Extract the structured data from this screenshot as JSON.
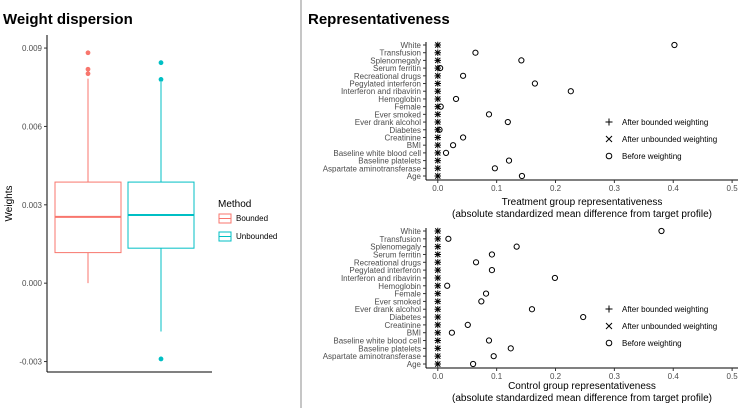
{
  "titles": {
    "left": "Weight dispersion",
    "right": "Representativeness"
  },
  "colors": {
    "bounded": "#f8766d",
    "unbounded": "#00bfc4",
    "axis": "#000000",
    "tick_text": "#4d4d4d"
  },
  "chart_data": [
    {
      "type": "box",
      "title": "Weight dispersion",
      "ylabel": "Weights",
      "xlabel": "",
      "ylim": [
        -0.0034,
        0.0095
      ],
      "y_ticks": [
        -0.003,
        0.0,
        0.003,
        0.006,
        0.009
      ],
      "y_tick_labels": [
        "-0.003",
        "0.000",
        "0.003",
        "0.006",
        "0.009"
      ],
      "legend_title": "Method",
      "legend_position": "right",
      "grid": false,
      "series": [
        {
          "name": "Bounded",
          "min": 0.0,
          "q1": 0.00117,
          "median": 0.00254,
          "q3": 0.00387,
          "max": 0.00783,
          "outliers": [
            0.00882,
            0.00819,
            0.00802
          ]
        },
        {
          "name": "Unbounded",
          "min": -0.00185,
          "q1": 0.00134,
          "median": 0.00261,
          "q3": 0.00387,
          "max": 0.0077,
          "outliers": [
            0.00844,
            0.0078,
            -0.0029
          ]
        }
      ]
    },
    {
      "type": "scatter",
      "title": "",
      "xlabel": "Treatment group representativeness",
      "xlabel2": "(absolute standardized mean difference from target profile)",
      "xlim": [
        -0.02,
        0.51
      ],
      "x_ticks": [
        0.0,
        0.1,
        0.2,
        0.3,
        0.4,
        0.5
      ],
      "x_tick_labels": [
        "0.0",
        "0.1",
        "0.2",
        "0.3",
        "0.4",
        "0.5"
      ],
      "legend_position": "right",
      "legend": [
        "After bounded weighting",
        "After unbounded weighting",
        "Before weighting"
      ],
      "categories": [
        "White",
        "Transfusion",
        "Splenomegaly",
        "Serum ferritin",
        "Recreational drugs",
        "Pegylated interferon",
        "Interferon and ribavirin",
        "Hemoglobin",
        "Female",
        "Ever smoked",
        "Ever drank alcohol",
        "Diabetes",
        "Creatinine",
        "BMI",
        "Baseline white blood cell",
        "Baseline platelets",
        "Aspartate aminotransferase",
        "Age"
      ],
      "series": [
        {
          "name": "After bounded weighting",
          "values": [
            0,
            0,
            0,
            0,
            0,
            0,
            0,
            0,
            0,
            0,
            0,
            0,
            0,
            0,
            0,
            0,
            0,
            0
          ]
        },
        {
          "name": "After unbounded weighting",
          "values": [
            0,
            0,
            0,
            0,
            0,
            0,
            0,
            0,
            0,
            0,
            0,
            0,
            0,
            0,
            0,
            0,
            0,
            0
          ]
        },
        {
          "name": "Before weighting",
          "values": [
            0.402,
            0.064,
            0.142,
            0.004,
            0.043,
            0.165,
            0.226,
            0.031,
            0.005,
            0.087,
            0.119,
            0.003,
            0.043,
            0.026,
            0.014,
            0.121,
            0.097,
            0.143
          ]
        }
      ]
    },
    {
      "type": "scatter",
      "title": "",
      "xlabel": "Control group representativeness",
      "xlabel2": "(absolute standardized mean difference from target profile)",
      "xlim": [
        -0.02,
        0.51
      ],
      "x_ticks": [
        0.0,
        0.1,
        0.2,
        0.3,
        0.4,
        0.5
      ],
      "x_tick_labels": [
        "0.0",
        "0.1",
        "0.2",
        "0.3",
        "0.4",
        "0.5"
      ],
      "legend_position": "right",
      "legend": [
        "After bounded weighting",
        "After unbounded weighting",
        "Before weighting"
      ],
      "categories": [
        "White",
        "Transfusion",
        "Splenomegaly",
        "Serum ferritin",
        "Recreational drugs",
        "Pegylated interferon",
        "Interferon and ribavirin",
        "Hemoglobin",
        "Female",
        "Ever smoked",
        "Ever drank alcohol",
        "Diabetes",
        "Creatinine",
        "BMI",
        "Baseline white blood cell",
        "Baseline platelets",
        "Aspartate aminotransferase",
        "Age"
      ],
      "series": [
        {
          "name": "After bounded weighting",
          "values": [
            0,
            0,
            0,
            0,
            0,
            0,
            0,
            0,
            0,
            0,
            0,
            0,
            0,
            0,
            0,
            0,
            0,
            0
          ]
        },
        {
          "name": "After unbounded weighting",
          "values": [
            0,
            0,
            0,
            0,
            0,
            0,
            0,
            0,
            0,
            0,
            0,
            0,
            0,
            0,
            0,
            0,
            0,
            0
          ]
        },
        {
          "name": "Before weighting",
          "values": [
            0.38,
            0.018,
            0.134,
            0.092,
            0.065,
            0.092,
            0.199,
            0.016,
            0.082,
            0.074,
            0.16,
            0.247,
            0.051,
            0.024,
            0.087,
            0.124,
            0.095,
            0.06
          ]
        }
      ]
    }
  ]
}
